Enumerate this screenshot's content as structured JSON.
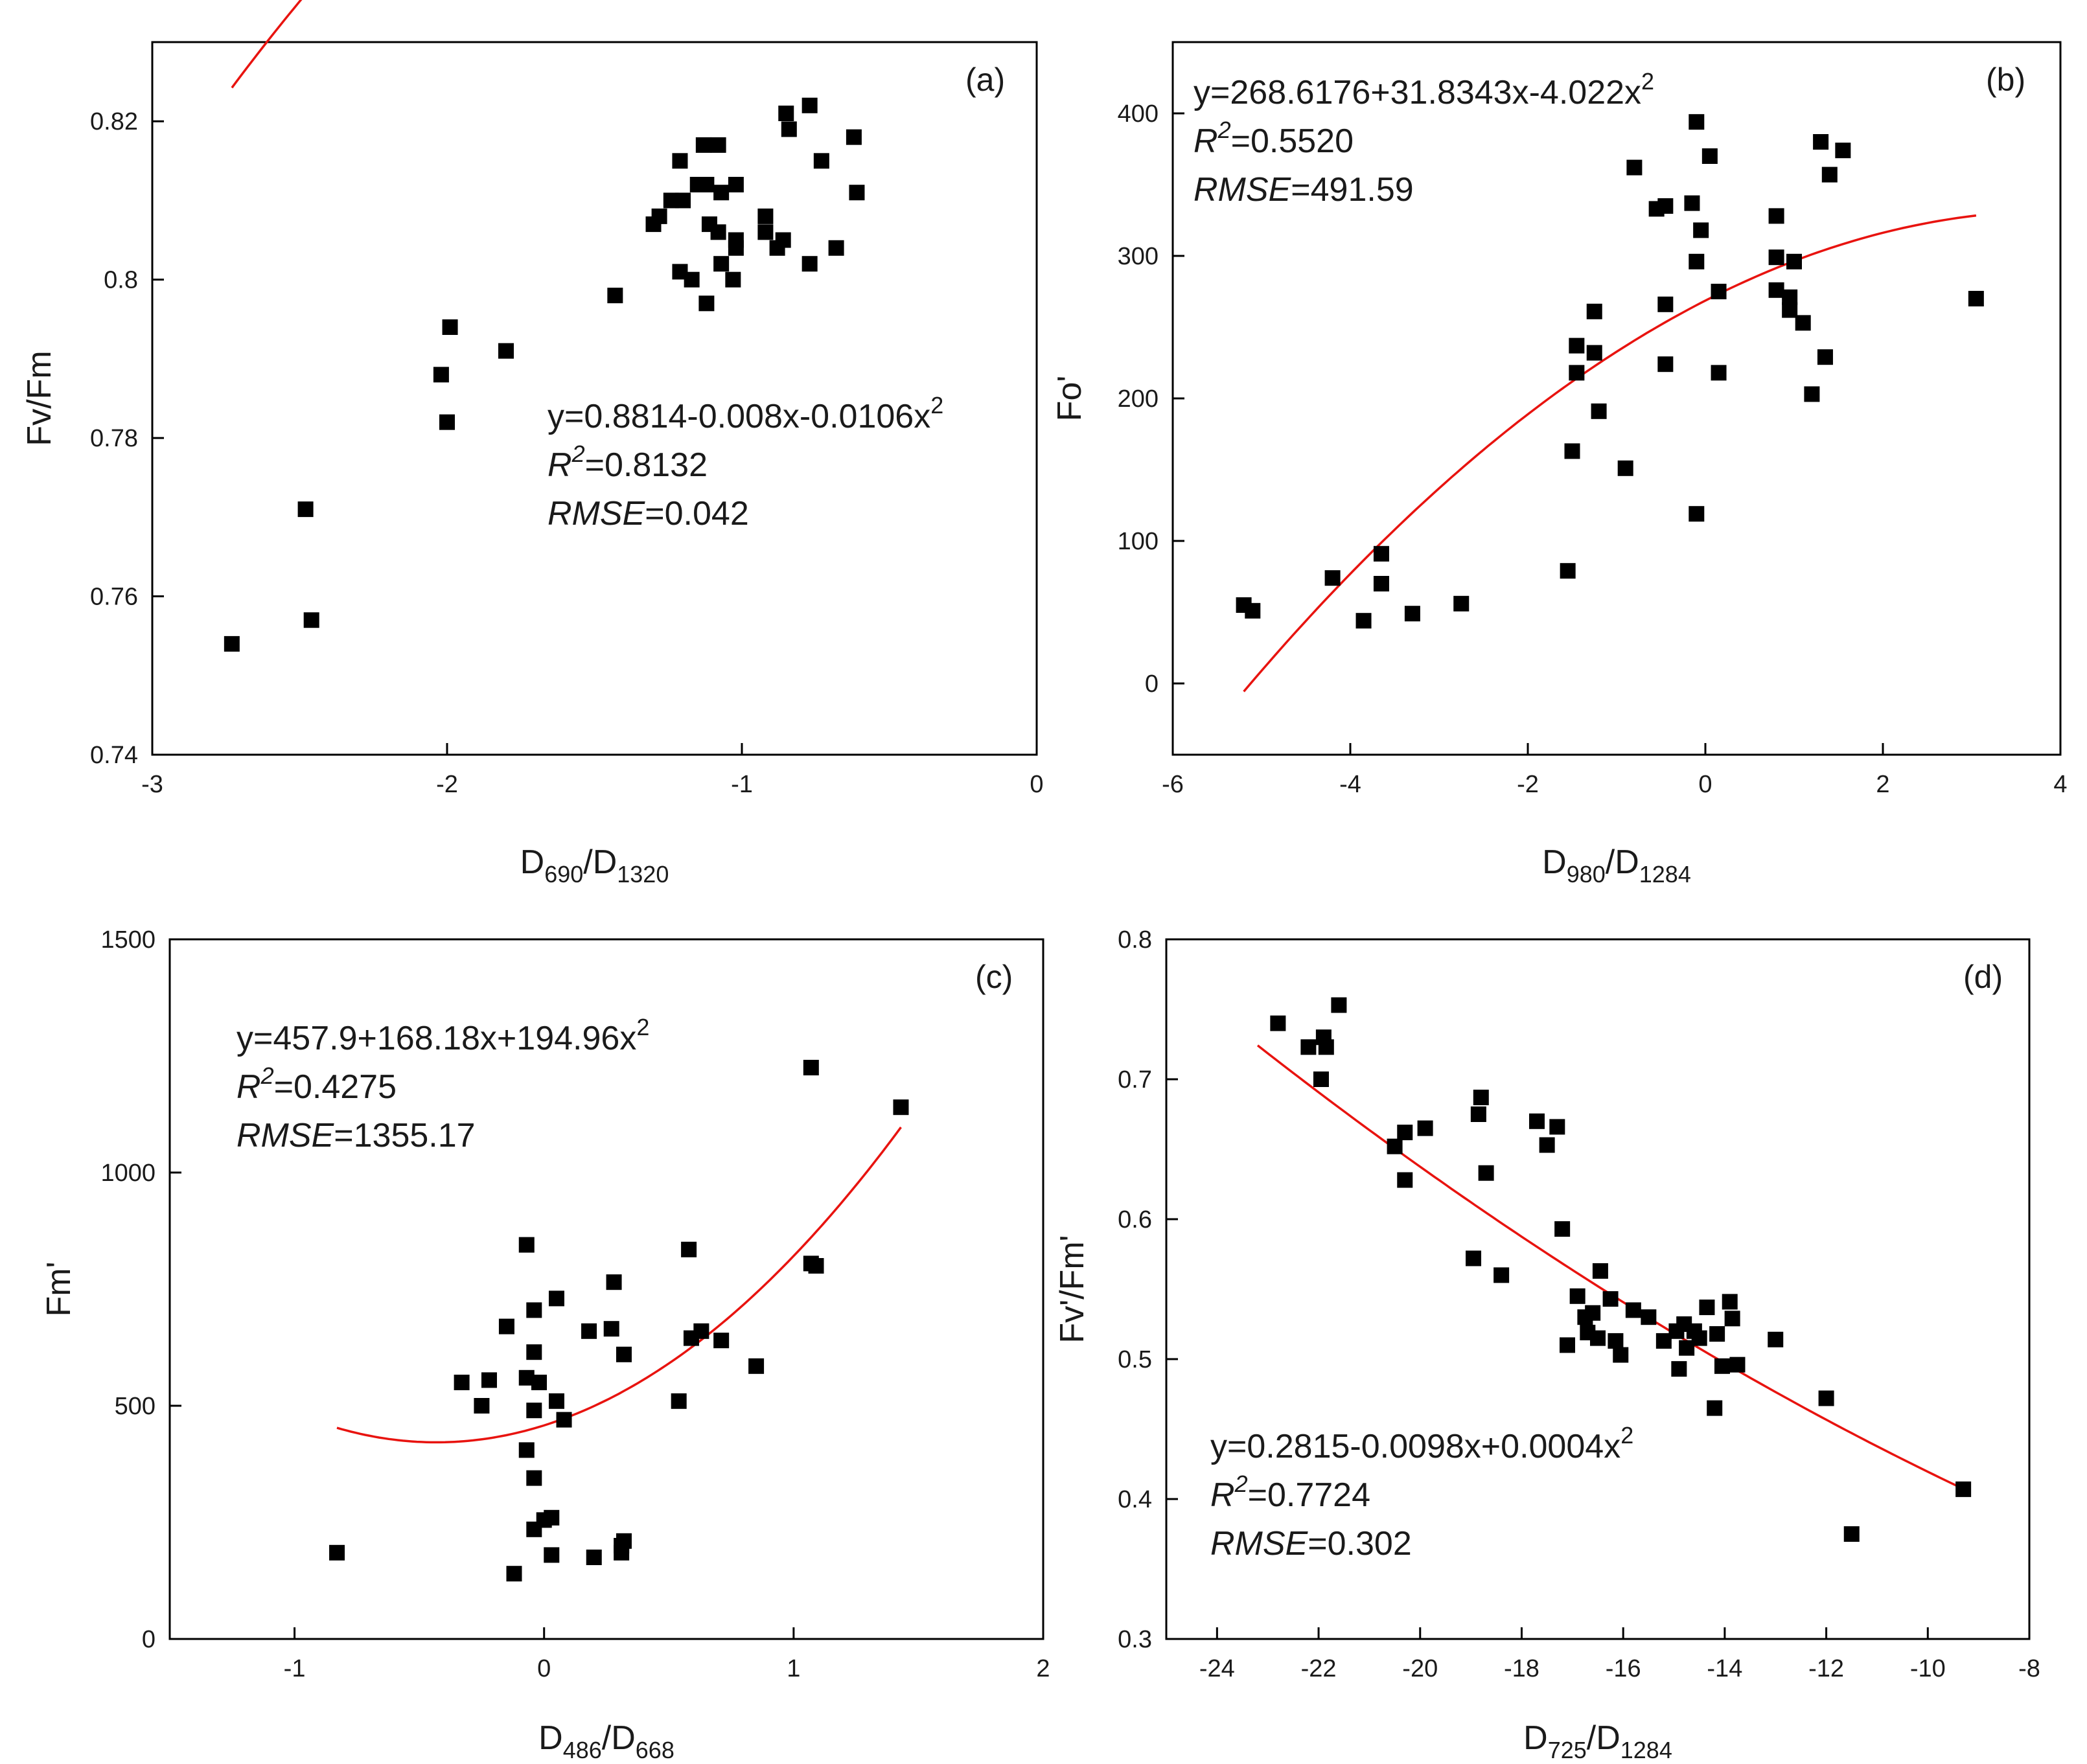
{
  "colors": {
    "points": "#000000",
    "fit_line": "#e8130f",
    "axes": "#000000"
  },
  "chart_data": [
    {
      "type": "scatter",
      "panel_label": "(a)",
      "title": "",
      "xlabel": {
        "main": "D",
        "sub1": "690",
        "sep": "/D",
        "sub2": "1320"
      },
      "ylabel": "Fv/Fm",
      "xlim": [
        -3,
        0
      ],
      "ylim": [
        0.74,
        0.83
      ],
      "xticks": [
        -3,
        -2,
        -1,
        0
      ],
      "xtick_labels": [
        "-3",
        "-2",
        "-1",
        "0"
      ],
      "yticks": [
        0.74,
        0.76,
        0.78,
        0.8,
        0.82
      ],
      "ytick_labels": [
        "0.74",
        "0.76",
        "0.78",
        "0.8",
        "0.82"
      ],
      "fit": {
        "c0": 0.8814,
        "c1": -0.008,
        "c2": -0.0106,
        "xrange": [
          -2.73,
          -0.62
        ]
      },
      "annotation": {
        "equation": "y=0.8814-0.008x-0.0106x",
        "eq_power": "2",
        "r2_label": "R",
        "r2_power": "2",
        "r2_value": "=0.8132",
        "rmse_label": "RMSE",
        "rmse_value": "=0.042"
      },
      "points": [
        [
          -2.73,
          0.754
        ],
        [
          -2.48,
          0.771
        ],
        [
          -2.46,
          0.757
        ],
        [
          -2.02,
          0.788
        ],
        [
          -1.99,
          0.794
        ],
        [
          -2.0,
          0.782
        ],
        [
          -1.8,
          0.791
        ],
        [
          -1.43,
          0.798
        ],
        [
          -1.3,
          0.807
        ],
        [
          -1.28,
          0.808
        ],
        [
          -1.24,
          0.81
        ],
        [
          -1.21,
          0.815
        ],
        [
          -1.2,
          0.81
        ],
        [
          -1.21,
          0.801
        ],
        [
          -1.17,
          0.8
        ],
        [
          -1.15,
          0.812
        ],
        [
          -1.13,
          0.817
        ],
        [
          -1.12,
          0.812
        ],
        [
          -1.11,
          0.807
        ],
        [
          -1.12,
          0.797
        ],
        [
          -1.08,
          0.817
        ],
        [
          -1.07,
          0.811
        ],
        [
          -1.08,
          0.806
        ],
        [
          -1.07,
          0.802
        ],
        [
          -1.03,
          0.8
        ],
        [
          -1.02,
          0.812
        ],
        [
          -1.02,
          0.805
        ],
        [
          -1.02,
          0.804
        ],
        [
          -0.92,
          0.806
        ],
        [
          -0.92,
          0.808
        ],
        [
          -0.88,
          0.804
        ],
        [
          -0.86,
          0.805
        ],
        [
          -0.85,
          0.821
        ],
        [
          -0.84,
          0.819
        ],
        [
          -0.77,
          0.822
        ],
        [
          -0.77,
          0.802
        ],
        [
          -0.73,
          0.815
        ],
        [
          -0.68,
          0.804
        ],
        [
          -0.62,
          0.818
        ],
        [
          -0.61,
          0.811
        ]
      ]
    },
    {
      "type": "scatter",
      "panel_label": "(b)",
      "title": "",
      "xlabel": {
        "main": "D",
        "sub1": "980",
        "sep": "/D",
        "sub2": "1284"
      },
      "ylabel": "Fo'",
      "xlim": [
        -6,
        4
      ],
      "ylim": [
        -50,
        450
      ],
      "xticks": [
        -6,
        -4,
        -2,
        0,
        2,
        4
      ],
      "xtick_labels": [
        "-6",
        "-4",
        "-2",
        "0",
        "2",
        "4"
      ],
      "yticks": [
        0,
        100,
        200,
        300,
        400
      ],
      "ytick_labels": [
        "0",
        "100",
        "200",
        "300",
        "400"
      ],
      "fit": {
        "c0": 268.6176,
        "c1": 31.8343,
        "c2": -4.022,
        "xrange": [
          -5.2,
          3.05
        ]
      },
      "annotation": {
        "equation": "y=268.6176+31.8343x-4.022x",
        "eq_power": "2",
        "r2_label": "R",
        "r2_power": "2",
        "r2_value": "=0.5520",
        "rmse_label": "RMSE",
        "rmse_value": "=491.59"
      },
      "points": [
        [
          -5.2,
          55
        ],
        [
          -5.1,
          51
        ],
        [
          -4.2,
          74
        ],
        [
          -3.85,
          44
        ],
        [
          -3.65,
          91
        ],
        [
          -3.65,
          70
        ],
        [
          -3.3,
          49
        ],
        [
          -2.75,
          56
        ],
        [
          -1.55,
          79
        ],
        [
          -1.5,
          163
        ],
        [
          -1.45,
          237
        ],
        [
          -1.45,
          218
        ],
        [
          -1.25,
          261
        ],
        [
          -1.25,
          232
        ],
        [
          -1.2,
          191
        ],
        [
          -0.9,
          151
        ],
        [
          -0.8,
          362
        ],
        [
          -0.55,
          333
        ],
        [
          -0.45,
          335
        ],
        [
          -0.45,
          266
        ],
        [
          -0.45,
          224
        ],
        [
          -0.15,
          337
        ],
        [
          -0.1,
          394
        ],
        [
          -0.1,
          296
        ],
        [
          -0.1,
          119
        ],
        [
          -0.05,
          318
        ],
        [
          0.05,
          370
        ],
        [
          0.15,
          275
        ],
        [
          0.15,
          218
        ],
        [
          0.8,
          328
        ],
        [
          0.8,
          299
        ],
        [
          0.8,
          276
        ],
        [
          0.95,
          271
        ],
        [
          0.95,
          262
        ],
        [
          1.0,
          296
        ],
        [
          1.1,
          253
        ],
        [
          1.2,
          203
        ],
        [
          1.3,
          380
        ],
        [
          1.35,
          229
        ],
        [
          1.4,
          357
        ],
        [
          1.55,
          374
        ],
        [
          3.05,
          270
        ]
      ]
    },
    {
      "type": "scatter",
      "panel_label": "(c)",
      "title": "",
      "xlabel": {
        "main": "D",
        "sub1": "486",
        "sep": "/D",
        "sub2": "668"
      },
      "ylabel": "Fm'",
      "xlim": [
        -1.5,
        2
      ],
      "ylim": [
        0,
        1500
      ],
      "xticks": [
        -1,
        0,
        1,
        2
      ],
      "xtick_labels": [
        "-1",
        "0",
        "1",
        "2"
      ],
      "yticks": [
        0,
        500,
        1000,
        1500
      ],
      "ytick_labels": [
        "0",
        "500",
        "1000",
        "1500"
      ],
      "fit": {
        "c0": 457.9,
        "c1": 168.18,
        "c2": 194.96,
        "xrange": [
          -0.83,
          1.43
        ]
      },
      "annotation": {
        "equation": "y=457.9+168.18x+194.96x",
        "eq_power": "2",
        "r2_label": "R",
        "r2_power": "2",
        "r2_value": "=0.4275",
        "rmse_label": "RMSE",
        "rmse_value": "=1355.17"
      },
      "points": [
        [
          -0.83,
          185
        ],
        [
          -0.33,
          550
        ],
        [
          -0.25,
          500
        ],
        [
          -0.22,
          555
        ],
        [
          -0.15,
          670
        ],
        [
          -0.12,
          140
        ],
        [
          -0.07,
          845
        ],
        [
          -0.07,
          560
        ],
        [
          -0.07,
          405
        ],
        [
          -0.04,
          705
        ],
        [
          -0.04,
          615
        ],
        [
          -0.04,
          490
        ],
        [
          -0.04,
          345
        ],
        [
          -0.04,
          235
        ],
        [
          -0.02,
          550
        ],
        [
          0.0,
          255
        ],
        [
          0.03,
          260
        ],
        [
          0.03,
          180
        ],
        [
          0.05,
          730
        ],
        [
          0.05,
          510
        ],
        [
          0.08,
          470
        ],
        [
          0.18,
          660
        ],
        [
          0.2,
          175
        ],
        [
          0.27,
          665
        ],
        [
          0.28,
          765
        ],
        [
          0.31,
          185
        ],
        [
          0.31,
          200
        ],
        [
          0.32,
          210
        ],
        [
          0.32,
          610
        ],
        [
          0.54,
          510
        ],
        [
          0.58,
          835
        ],
        [
          0.59,
          645
        ],
        [
          0.63,
          660
        ],
        [
          0.71,
          640
        ],
        [
          0.85,
          585
        ],
        [
          1.07,
          1225
        ],
        [
          1.07,
          805
        ],
        [
          1.09,
          800
        ],
        [
          1.43,
          1140
        ]
      ]
    },
    {
      "type": "scatter",
      "panel_label": "(d)",
      "title": "",
      "xlabel": {
        "main": "D",
        "sub1": "725",
        "sep": "/D",
        "sub2": "1284"
      },
      "ylabel": "Fv'/Fm'",
      "xlim": [
        -25,
        -8
      ],
      "ylim": [
        0.3,
        0.8
      ],
      "xticks": [
        -24,
        -22,
        -20,
        -18,
        -16,
        -14,
        -12,
        -10,
        -8
      ],
      "xtick_labels": [
        "-24",
        "-22",
        "-20",
        "-18",
        "-16",
        "-14",
        "-12",
        "-10",
        "-8"
      ],
      "yticks": [
        0.3,
        0.4,
        0.5,
        0.6,
        0.7,
        0.8
      ],
      "ytick_labels": [
        "0.3",
        "0.4",
        "0.5",
        "0.6",
        "0.7",
        "0.8"
      ],
      "fit": {
        "c0": 0.2815,
        "c1": -0.0098,
        "c2": 0.0004,
        "xrange": [
          -23.2,
          -9.3
        ]
      },
      "annotation": {
        "equation": "y=0.2815-0.0098x+0.0004x",
        "eq_power": "2",
        "r2_label": "R",
        "r2_power": "2",
        "r2_value": "=0.7724",
        "rmse_label": "RMSE",
        "rmse_value": "=0.302"
      },
      "points": [
        [
          -22.8,
          0.74
        ],
        [
          -22.2,
          0.723
        ],
        [
          -21.9,
          0.73
        ],
        [
          -21.85,
          0.723
        ],
        [
          -21.95,
          0.7
        ],
        [
          -21.6,
          0.753
        ],
        [
          -20.5,
          0.652
        ],
        [
          -20.3,
          0.662
        ],
        [
          -20.3,
          0.628
        ],
        [
          -19.9,
          0.665
        ],
        [
          -18.95,
          0.572
        ],
        [
          -18.85,
          0.675
        ],
        [
          -18.8,
          0.687
        ],
        [
          -18.7,
          0.633
        ],
        [
          -18.4,
          0.56
        ],
        [
          -17.7,
          0.67
        ],
        [
          -17.5,
          0.653
        ],
        [
          -17.3,
          0.666
        ],
        [
          -17.2,
          0.593
        ],
        [
          -17.1,
          0.51
        ],
        [
          -16.9,
          0.545
        ],
        [
          -16.75,
          0.53
        ],
        [
          -16.7,
          0.519
        ],
        [
          -16.6,
          0.533
        ],
        [
          -16.5,
          0.515
        ],
        [
          -16.45,
          0.563
        ],
        [
          -16.25,
          0.543
        ],
        [
          -16.15,
          0.513
        ],
        [
          -16.05,
          0.503
        ],
        [
          -15.8,
          0.535
        ],
        [
          -15.5,
          0.53
        ],
        [
          -15.2,
          0.513
        ],
        [
          -14.95,
          0.52
        ],
        [
          -14.9,
          0.493
        ],
        [
          -14.8,
          0.525
        ],
        [
          -14.75,
          0.508
        ],
        [
          -14.6,
          0.52
        ],
        [
          -14.5,
          0.515
        ],
        [
          -14.35,
          0.537
        ],
        [
          -14.2,
          0.465
        ],
        [
          -14.15,
          0.518
        ],
        [
          -14.05,
          0.495
        ],
        [
          -13.9,
          0.541
        ],
        [
          -13.85,
          0.529
        ],
        [
          -13.75,
          0.496
        ],
        [
          -13.0,
          0.514
        ],
        [
          -12.0,
          0.472
        ],
        [
          -11.5,
          0.375
        ],
        [
          -9.3,
          0.407
        ]
      ]
    }
  ]
}
